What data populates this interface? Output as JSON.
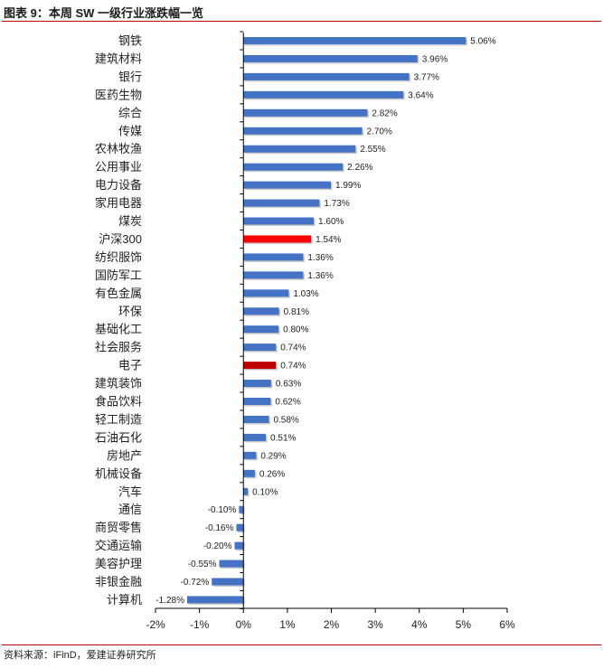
{
  "header": {
    "title": "图表 9：本周 SW 一级行业涨跌幅一览"
  },
  "footer": {
    "source": "资料来源：iFinD，爱建证券研究所"
  },
  "colors": {
    "default_bar": "#4472c4",
    "highlight_red": "#ff0000",
    "highlight_darkred": "#c00000"
  },
  "chart_data": {
    "type": "bar",
    "orientation": "horizontal",
    "categories": [
      "钢铁",
      "建筑材料",
      "银行",
      "医药生物",
      "综合",
      "传媒",
      "农林牧渔",
      "公用事业",
      "电力设备",
      "家用电器",
      "煤炭",
      "沪深300",
      "纺织服饰",
      "国防军工",
      "有色金属",
      "环保",
      "基础化工",
      "社会服务",
      "电子",
      "建筑装饰",
      "食品饮料",
      "轻工制造",
      "石油石化",
      "房地产",
      "机械设备",
      "汽车",
      "通信",
      "商贸零售",
      "交通运输",
      "美容护理",
      "非银金融",
      "计算机"
    ],
    "values": [
      5.06,
      3.96,
      3.77,
      3.64,
      2.82,
      2.7,
      2.55,
      2.26,
      1.99,
      1.73,
      1.6,
      1.54,
      1.36,
      1.36,
      1.03,
      0.81,
      0.8,
      0.74,
      0.74,
      0.63,
      0.62,
      0.58,
      0.51,
      0.29,
      0.26,
      0.1,
      -0.1,
      -0.16,
      -0.2,
      -0.55,
      -0.72,
      -1.28
    ],
    "value_labels": [
      "5.06%",
      "3.96%",
      "3.77%",
      "3.64%",
      "2.82%",
      "2.70%",
      "2.55%",
      "2.26%",
      "1.99%",
      "1.73%",
      "1.60%",
      "1.54%",
      "1.36%",
      "1.36%",
      "1.03%",
      "0.81%",
      "0.80%",
      "0.74%",
      "0.74%",
      "0.63%",
      "0.62%",
      "0.58%",
      "0.51%",
      "0.29%",
      "0.26%",
      "0.10%",
      "-0.10%",
      "-0.16%",
      "-0.20%",
      "-0.55%",
      "-0.72%",
      "-1.28%"
    ],
    "highlights": {
      "沪深300": "#ff0000",
      "电子": "#c00000"
    },
    "xlim": [
      -2,
      6
    ],
    "xticks": [
      -2,
      -1,
      0,
      1,
      2,
      3,
      4,
      5,
      6
    ],
    "xtick_labels": [
      "-2%",
      "-1%",
      "0%",
      "1%",
      "2%",
      "3%",
      "4%",
      "5%",
      "6%"
    ],
    "grid": false,
    "legend": "none"
  }
}
